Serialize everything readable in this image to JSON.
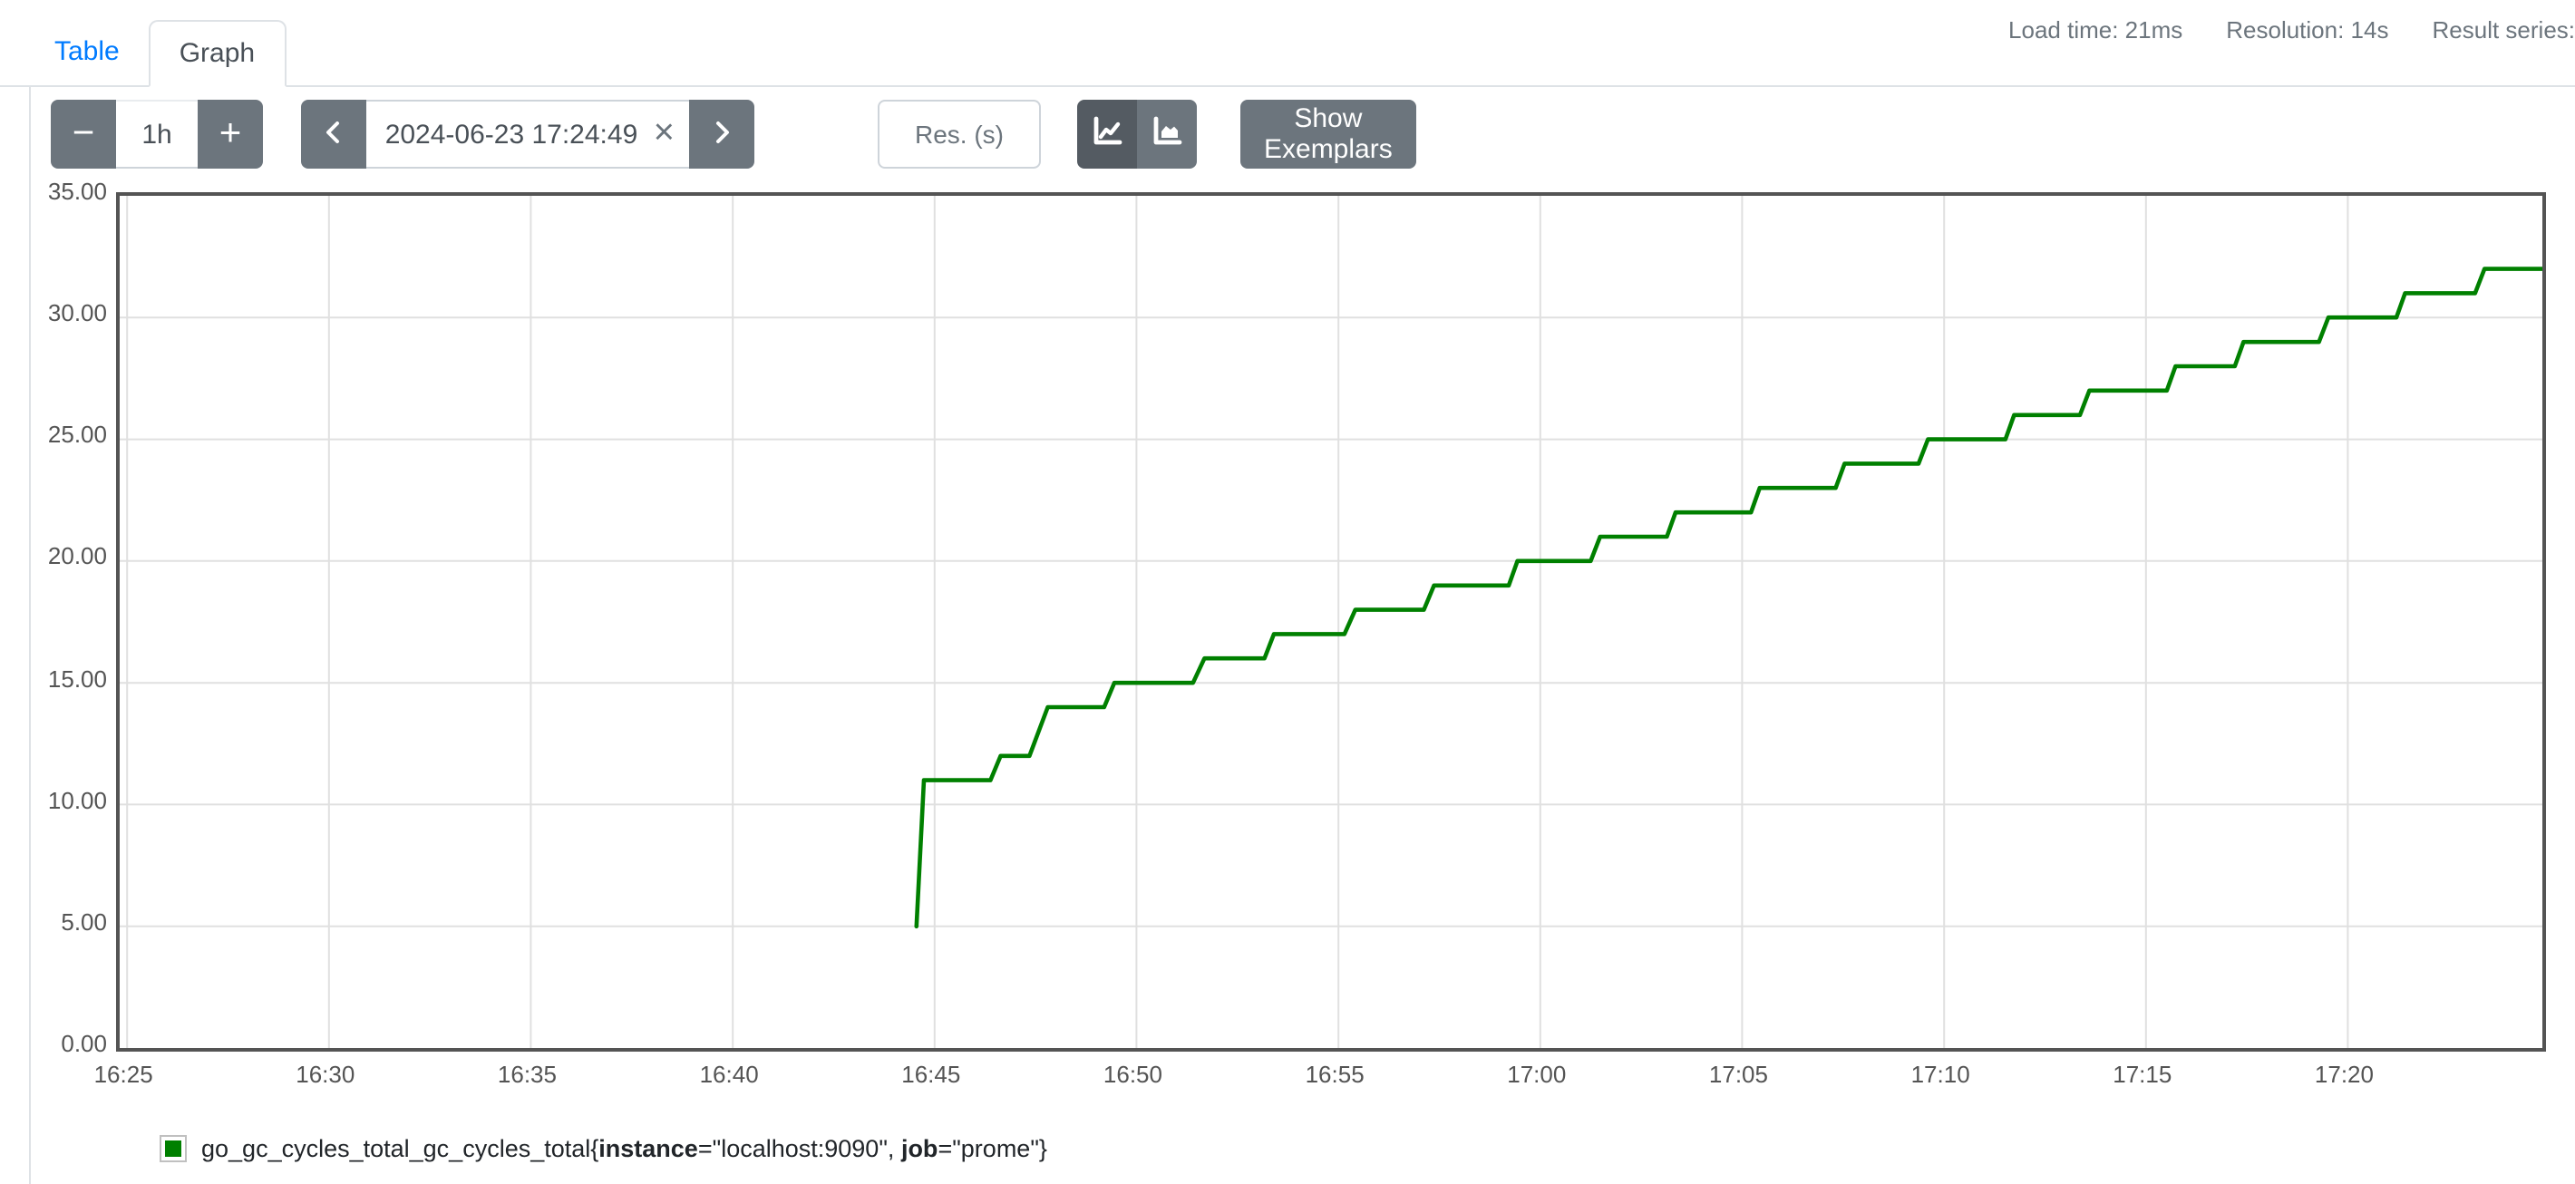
{
  "tabs": {
    "table": "Table",
    "graph": "Graph"
  },
  "stats": {
    "load_time": "Load time: 21ms",
    "resolution": "Resolution: 14s",
    "result_series": "Result series:"
  },
  "toolbar": {
    "range_decrease_label": "−",
    "range_value": "1h",
    "range_increase_label": "+",
    "datetime_value": "2024-06-23 17:24:49",
    "datetime_clear_label": "×",
    "resolution_placeholder": "Res. (s)",
    "show_exemplars_label": "Show Exemplars",
    "icons": [
      "chevron-left",
      "chevron-right",
      "chart-line",
      "chart-area",
      "clear-x"
    ]
  },
  "colors": {
    "accent_blue": "#007bff",
    "button_gray": "#6c757d",
    "button_gray_active": "#545b62",
    "chart_border": "#545454",
    "gridline": "#e0e0e0",
    "series_green": "#008000"
  },
  "chart_data": {
    "type": "line",
    "title": "",
    "xlabel": "",
    "ylabel": "",
    "x_start": "16:24:49",
    "x_end": "17:24:49",
    "x_range_seconds": 3600,
    "ylim": [
      0,
      35
    ],
    "grid": true,
    "legend_position": "bottom-left",
    "x_ticks": [
      {
        "label": "16:25",
        "t": 11
      },
      {
        "label": "16:30",
        "t": 311
      },
      {
        "label": "16:35",
        "t": 611
      },
      {
        "label": "16:40",
        "t": 911
      },
      {
        "label": "16:45",
        "t": 1211
      },
      {
        "label": "16:50",
        "t": 1511
      },
      {
        "label": "16:55",
        "t": 1811
      },
      {
        "label": "17:00",
        "t": 2111
      },
      {
        "label": "17:05",
        "t": 2411
      },
      {
        "label": "17:10",
        "t": 2711
      },
      {
        "label": "17:15",
        "t": 3011
      },
      {
        "label": "17:20",
        "t": 3311
      }
    ],
    "y_ticks": [
      {
        "label": "35.00",
        "v": 35
      },
      {
        "label": "30.00",
        "v": 30
      },
      {
        "label": "25.00",
        "v": 25
      },
      {
        "label": "20.00",
        "v": 20
      },
      {
        "label": "15.00",
        "v": 15
      },
      {
        "label": "10.00",
        "v": 10
      },
      {
        "label": "5.00",
        "v": 5
      },
      {
        "label": "0.00",
        "v": 0
      }
    ],
    "series": [
      {
        "metric": "go_gc_cycles_total_gc_cycles_total",
        "labels": [
          {
            "key": "instance",
            "value": "localhost:9090"
          },
          {
            "key": "job",
            "value": "prome"
          }
        ],
        "color": "#008000",
        "points_t_seconds_value": [
          [
            1184,
            5
          ],
          [
            1195,
            11
          ],
          [
            1294,
            11
          ],
          [
            1309,
            12
          ],
          [
            1352,
            12
          ],
          [
            1379,
            14
          ],
          [
            1463,
            14
          ],
          [
            1478,
            15
          ],
          [
            1595,
            15
          ],
          [
            1612,
            16
          ],
          [
            1701,
            16
          ],
          [
            1715,
            17
          ],
          [
            1820,
            17
          ],
          [
            1836,
            18
          ],
          [
            1938,
            18
          ],
          [
            1953,
            19
          ],
          [
            2064,
            19
          ],
          [
            2077,
            20
          ],
          [
            2186,
            20
          ],
          [
            2200,
            21
          ],
          [
            2299,
            21
          ],
          [
            2312,
            22
          ],
          [
            2424,
            22
          ],
          [
            2437,
            23
          ],
          [
            2550,
            23
          ],
          [
            2563,
            24
          ],
          [
            2673,
            24
          ],
          [
            2687,
            25
          ],
          [
            2802,
            25
          ],
          [
            2815,
            26
          ],
          [
            2913,
            26
          ],
          [
            2927,
            27
          ],
          [
            3042,
            27
          ],
          [
            3055,
            28
          ],
          [
            3143,
            28
          ],
          [
            3156,
            29
          ],
          [
            3268,
            29
          ],
          [
            3282,
            30
          ],
          [
            3383,
            30
          ],
          [
            3396,
            31
          ],
          [
            3500,
            31
          ],
          [
            3514,
            32
          ],
          [
            3600,
            32
          ]
        ]
      }
    ]
  }
}
